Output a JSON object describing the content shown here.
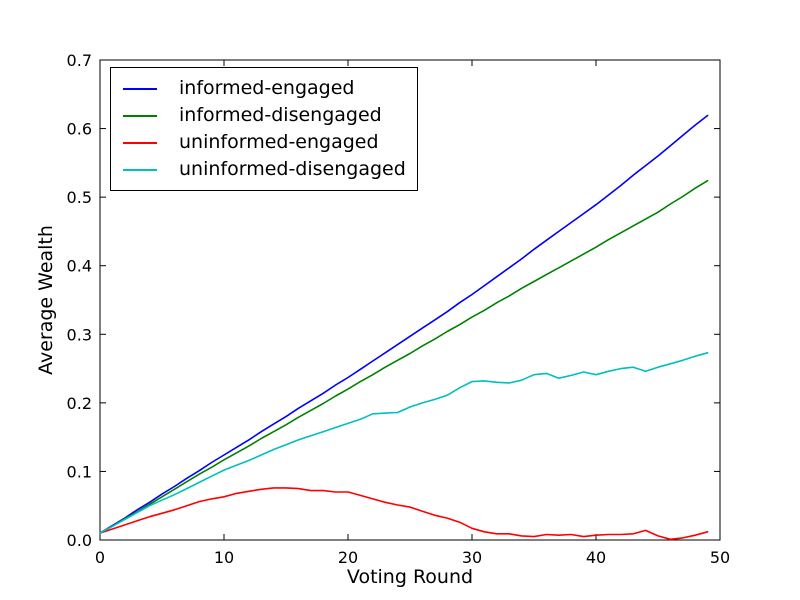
{
  "figure": {
    "background": "#ffffff",
    "frame_color": "#000000"
  },
  "chart_data": {
    "type": "line",
    "title": "",
    "xlabel": "Voting Round",
    "ylabel": "Average Wealth",
    "xlim": [
      0,
      50
    ],
    "ylim": [
      0.0,
      0.7
    ],
    "xtick_labels": [
      "0",
      "10",
      "20",
      "30",
      "40",
      "50"
    ],
    "ytick_labels": [
      "0.0",
      "0.1",
      "0.2",
      "0.3",
      "0.4",
      "0.5",
      "0.6",
      "0.7"
    ],
    "grid": false,
    "legend_position": "upper-left",
    "x": [
      0,
      1,
      2,
      3,
      4,
      5,
      6,
      7,
      8,
      9,
      10,
      11,
      12,
      13,
      14,
      15,
      16,
      17,
      18,
      19,
      20,
      21,
      22,
      23,
      24,
      25,
      26,
      27,
      28,
      29,
      30,
      31,
      32,
      33,
      34,
      35,
      36,
      37,
      38,
      39,
      40,
      41,
      42,
      43,
      44,
      45,
      46,
      47,
      48,
      49
    ],
    "series": [
      {
        "name": "informed-engaged",
        "color": "#0000ff",
        "values": [
          0.01,
          0.021,
          0.032,
          0.044,
          0.055,
          0.067,
          0.078,
          0.09,
          0.101,
          0.113,
          0.124,
          0.135,
          0.146,
          0.158,
          0.169,
          0.18,
          0.192,
          0.203,
          0.214,
          0.226,
          0.237,
          0.249,
          0.261,
          0.273,
          0.285,
          0.297,
          0.309,
          0.321,
          0.333,
          0.346,
          0.358,
          0.371,
          0.384,
          0.397,
          0.41,
          0.424,
          0.437,
          0.45,
          0.463,
          0.476,
          0.489,
          0.503,
          0.517,
          0.532,
          0.546,
          0.56,
          0.575,
          0.59,
          0.605,
          0.619
        ]
      },
      {
        "name": "informed-disengaged",
        "color": "#008000",
        "values": [
          0.01,
          0.02,
          0.031,
          0.041,
          0.052,
          0.063,
          0.074,
          0.085,
          0.096,
          0.106,
          0.117,
          0.127,
          0.137,
          0.148,
          0.158,
          0.168,
          0.179,
          0.189,
          0.199,
          0.21,
          0.22,
          0.231,
          0.241,
          0.252,
          0.262,
          0.272,
          0.283,
          0.293,
          0.304,
          0.314,
          0.325,
          0.335,
          0.346,
          0.356,
          0.367,
          0.377,
          0.387,
          0.397,
          0.407,
          0.417,
          0.427,
          0.438,
          0.448,
          0.458,
          0.468,
          0.478,
          0.49,
          0.501,
          0.513,
          0.524
        ]
      },
      {
        "name": "uninformed-engaged",
        "color": "#ff0000",
        "values": [
          0.01,
          0.016,
          0.022,
          0.028,
          0.034,
          0.039,
          0.044,
          0.05,
          0.056,
          0.06,
          0.063,
          0.068,
          0.071,
          0.074,
          0.076,
          0.076,
          0.075,
          0.072,
          0.072,
          0.07,
          0.07,
          0.065,
          0.06,
          0.055,
          0.051,
          0.048,
          0.042,
          0.036,
          0.032,
          0.026,
          0.017,
          0.012,
          0.009,
          0.009,
          0.006,
          0.005,
          0.008,
          0.007,
          0.008,
          0.005,
          0.007,
          0.008,
          0.008,
          0.009,
          0.014,
          0.006,
          0.001,
          0.003,
          0.007,
          0.012
        ]
      },
      {
        "name": "uninformed-disengaged",
        "color": "#00bfbf",
        "values": [
          0.01,
          0.02,
          0.03,
          0.04,
          0.05,
          0.058,
          0.066,
          0.075,
          0.084,
          0.093,
          0.102,
          0.109,
          0.116,
          0.124,
          0.132,
          0.139,
          0.146,
          0.152,
          0.158,
          0.164,
          0.17,
          0.176,
          0.184,
          0.185,
          0.186,
          0.194,
          0.2,
          0.205,
          0.211,
          0.222,
          0.231,
          0.232,
          0.23,
          0.229,
          0.233,
          0.241,
          0.243,
          0.236,
          0.24,
          0.245,
          0.241,
          0.246,
          0.25,
          0.252,
          0.246,
          0.252,
          0.257,
          0.262,
          0.268,
          0.273
        ]
      }
    ]
  }
}
